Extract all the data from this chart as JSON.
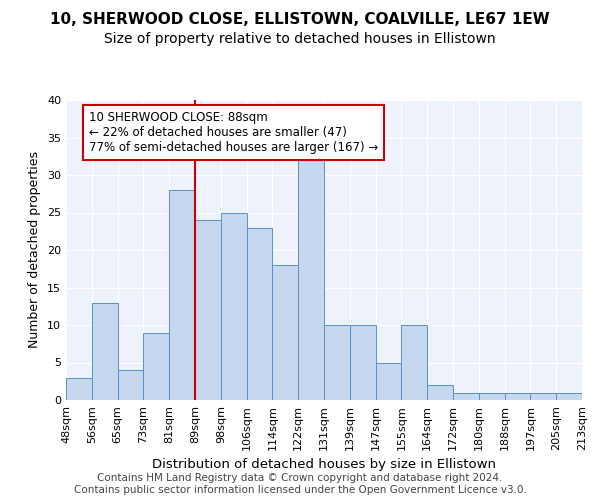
{
  "title_line1": "10, SHERWOOD CLOSE, ELLISTOWN, COALVILLE, LE67 1EW",
  "title_line2": "Size of property relative to detached houses in Ellistown",
  "xlabel": "Distribution of detached houses by size in Ellistown",
  "ylabel": "Number of detached properties",
  "bin_labels": [
    "48sqm",
    "56sqm",
    "65sqm",
    "73sqm",
    "81sqm",
    "89sqm",
    "98sqm",
    "106sqm",
    "114sqm",
    "122sqm",
    "131sqm",
    "139sqm",
    "147sqm",
    "155sqm",
    "164sqm",
    "172sqm",
    "180sqm",
    "188sqm",
    "197sqm",
    "205sqm",
    "213sqm"
  ],
  "values": [
    3,
    13,
    4,
    9,
    28,
    24,
    25,
    23,
    18,
    32,
    10,
    10,
    5,
    10,
    2,
    1,
    1,
    1,
    1,
    1
  ],
  "bar_color": "#c5d8f0",
  "bar_edge_color": "#5b8fc9",
  "vline_color": "#cc0000",
  "vline_pos": 4.5,
  "annotation_text": "10 SHERWOOD CLOSE: 88sqm\n← 22% of detached houses are smaller (47)\n77% of semi-detached houses are larger (167) →",
  "annotation_box_color": "#ffffff",
  "annotation_box_edge": "#cc0000",
  "ylim": [
    0,
    40
  ],
  "yticks": [
    0,
    5,
    10,
    15,
    20,
    25,
    30,
    35,
    40
  ],
  "footer_text": "Contains HM Land Registry data © Crown copyright and database right 2024.\nContains public sector information licensed under the Open Government Licence v3.0.",
  "bg_color": "#eef2fb",
  "title1_fontsize": 11,
  "title2_fontsize": 10,
  "xlabel_fontsize": 9.5,
  "ylabel_fontsize": 9,
  "tick_fontsize": 8,
  "footer_fontsize": 7.5,
  "annotation_fontsize": 8.5
}
